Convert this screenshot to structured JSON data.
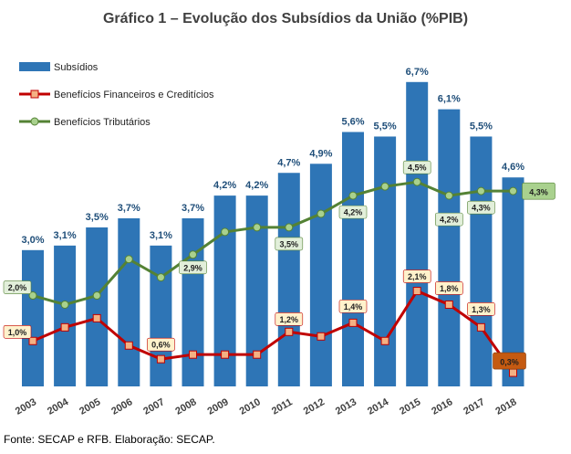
{
  "title": "Gráfico 1 – Evolução dos Subsídios da União (%PIB)",
  "source": "Fonte: SECAP e RFB. Elaboração: SECAP.",
  "colors": {
    "bars": "#2e75b6",
    "financeiros": "#c00000",
    "tributarios": "#548235",
    "bar_labels": "#1f4e79"
  },
  "chart_data": {
    "type": "bar",
    "title": "Gráfico 1 – Evolução dos Subsídios da União (%PIB)",
    "categories": [
      "2003",
      "2004",
      "2005",
      "2006",
      "2007",
      "2008",
      "2009",
      "2010",
      "2011",
      "2012",
      "2013",
      "2014",
      "2015",
      "2016",
      "2017",
      "2018"
    ],
    "ylim": [
      0,
      7.5
    ],
    "legend_placement": "top-left",
    "grid": false,
    "series": [
      {
        "name": "Subsídios",
        "kind": "bar",
        "values": [
          3.0,
          3.1,
          3.5,
          3.7,
          3.1,
          3.7,
          4.2,
          4.2,
          4.7,
          4.9,
          5.6,
          5.5,
          6.7,
          6.1,
          5.5,
          4.6
        ],
        "labels": [
          "3,0%",
          "3,1%",
          "3,5%",
          "3,7%",
          "3,1%",
          "3,7%",
          "4,2%",
          "4,2%",
          "4,7%",
          "4,9%",
          "5,6%",
          "5,5%",
          "6,7%",
          "6,1%",
          "5,5%",
          "4,6%"
        ]
      },
      {
        "name": "Benefícios Financeiros e Creditícios",
        "kind": "line",
        "values": [
          1.0,
          1.3,
          1.5,
          0.9,
          0.6,
          0.7,
          0.7,
          0.7,
          1.2,
          1.1,
          1.4,
          1.0,
          2.1,
          1.8,
          1.3,
          0.3
        ],
        "labels": [
          "1,0%",
          null,
          null,
          null,
          "0,6%",
          null,
          null,
          null,
          "1,2%",
          null,
          "1,4%",
          null,
          "2,1%",
          "1,8%",
          "1,3%",
          "0,3%"
        ]
      },
      {
        "name": "Benefícios Tributários",
        "kind": "line",
        "values": [
          2.0,
          1.8,
          2.0,
          2.8,
          2.4,
          2.9,
          3.4,
          3.5,
          3.5,
          3.8,
          4.2,
          4.4,
          4.5,
          4.2,
          4.3,
          4.3
        ],
        "labels": [
          "2,0%",
          null,
          null,
          null,
          null,
          "2,9%",
          null,
          null,
          "3,5%",
          null,
          "4,2%",
          null,
          "4,5%",
          "4,2%",
          "4,3%",
          "4,3%"
        ]
      }
    ]
  }
}
